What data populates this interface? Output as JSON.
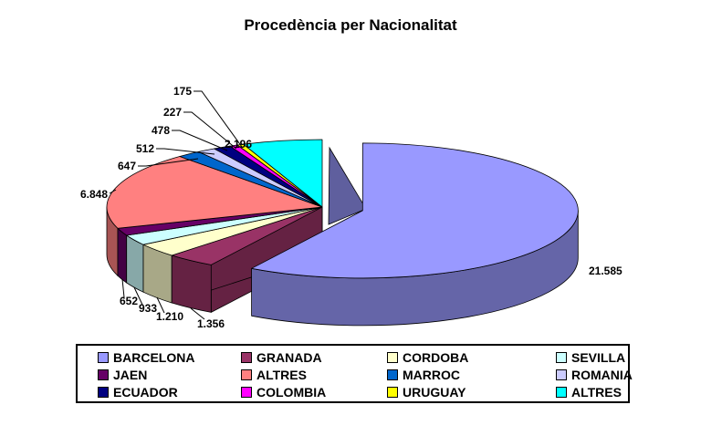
{
  "title": "Procedència per Nacionalitat",
  "chart_data": {
    "type": "pie",
    "style": "3d-exploded",
    "title": "Procedència per Nacionalitat",
    "legend_position": "bottom",
    "grid": false,
    "slices": [
      {
        "label": "BARCELONA",
        "value": 21585,
        "display": "21.585",
        "color": "#9999FF"
      },
      {
        "label": "GRANADA",
        "value": 1356,
        "display": "1.356",
        "color": "#993366"
      },
      {
        "label": "CORDOBA",
        "value": 1210,
        "display": "1.210",
        "color": "#FFFFCC"
      },
      {
        "label": "SEVILLA",
        "value": 933,
        "display": "933",
        "color": "#CCFFFF"
      },
      {
        "label": "JAEN",
        "value": 652,
        "display": "652",
        "color": "#660066"
      },
      {
        "label": "ALTRES",
        "value": 6848,
        "display": "6.848",
        "color": "#FF8080"
      },
      {
        "label": "MARROC",
        "value": 647,
        "display": "647",
        "color": "#0066CC"
      },
      {
        "label": "ROMANIA",
        "value": 512,
        "display": "512",
        "color": "#CCCCFF"
      },
      {
        "label": "ECUADOR",
        "value": 478,
        "display": "478",
        "color": "#000080"
      },
      {
        "label": "COLOMBIA",
        "value": 227,
        "display": "227",
        "color": "#FF00FF"
      },
      {
        "label": "URUGUAY",
        "value": 175,
        "display": "175",
        "color": "#FFFF00"
      },
      {
        "label": "ALTRES",
        "value": 2196,
        "display": "2.196",
        "color": "#00FFFF"
      }
    ]
  }
}
